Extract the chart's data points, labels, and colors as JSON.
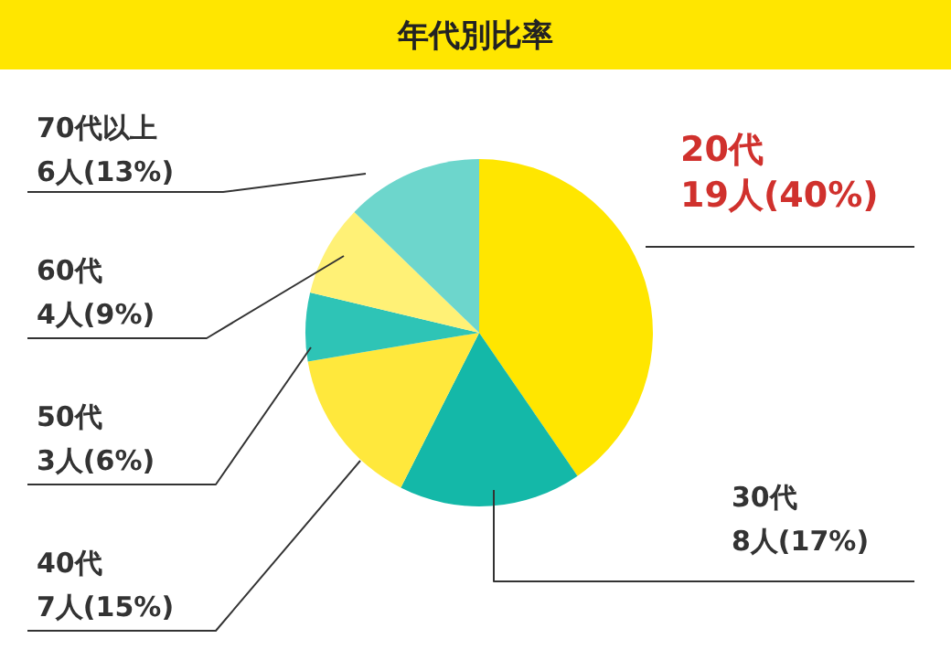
{
  "chart_data": {
    "type": "pie",
    "title": "年代別比率",
    "categories": [
      "20代",
      "30代",
      "40代",
      "50代",
      "60代",
      "70代以上"
    ],
    "values": [
      19,
      8,
      7,
      3,
      4,
      6
    ],
    "value_labels": [
      "19人(40%)",
      "8人(17%)",
      "7人(15%)",
      "3人(6%)",
      "4人(9%)",
      "6人(13%)"
    ],
    "colors": [
      "#ffe600",
      "#14b8a8",
      "#ffe83c",
      "#2ec4b6",
      "#fff176",
      "#6dd6cc"
    ]
  }
}
